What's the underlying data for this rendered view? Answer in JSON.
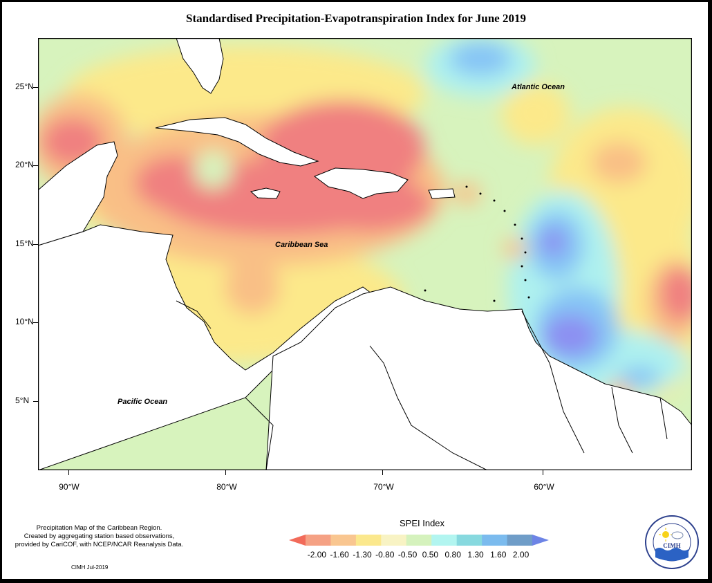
{
  "title": "Standardised Precipitation-Evapotranspiration Index for June 2019",
  "map": {
    "lat_labels": [
      "25°N",
      "20°N",
      "15°N",
      "10°N",
      "5°N"
    ],
    "lon_labels": [
      "90°W",
      "80°W",
      "70°W",
      "60°W"
    ],
    "places": {
      "atlantic": "Atlantic Ocean",
      "caribbean": "Caribbean Sea",
      "pacific": "Pacific Ocean"
    },
    "colors": {
      "ocean_neutral": "#d7f3bd",
      "dry_extreme": "#f08080",
      "dry_moderate": "#f9bf86",
      "dry_slight": "#fce98a",
      "wet_slight": "#aef1ef",
      "wet_moderate": "#86c4f5",
      "wet_strong": "#8c8ff2",
      "land": "#ffffff"
    }
  },
  "footnote": {
    "line1": "Precipitation Map of the Caribbean Region.",
    "line2": "Created by aggregating station based observations,",
    "line3": "provided by CariCOF, with NCEP/NCAR Reanalysis Data."
  },
  "credit": "CIMH Jul-2019",
  "legend": {
    "title": "SPEI Index",
    "ticks": [
      "-2.00",
      "-1.60",
      "-1.30",
      "-0.80",
      "-0.50",
      "0.50",
      "0.80",
      "1.30",
      "1.60",
      "2.00"
    ],
    "colors": [
      "#f26b5a",
      "#f5a184",
      "#f9c690",
      "#fbe88d",
      "#f8f3c4",
      "#d5f2bd",
      "#b2f5f0",
      "#87d9df",
      "#7bbbee",
      "#6f9dc8",
      "#6d84e6"
    ]
  },
  "logo": {
    "name": "CIMH",
    "ring_text": "Caribbean Institute for Meteorology and Hydrology"
  }
}
